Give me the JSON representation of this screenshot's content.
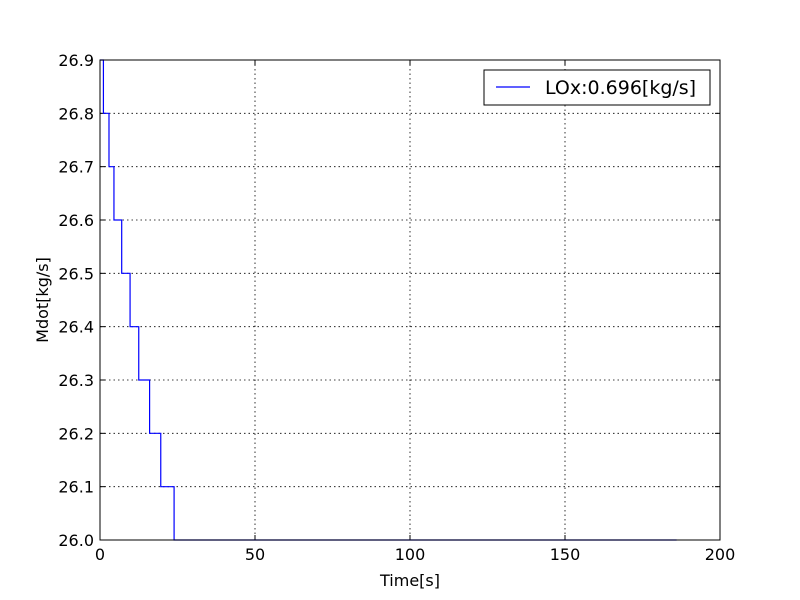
{
  "chart_data": {
    "type": "line",
    "xlabel": "Time[s]",
    "ylabel": "Mdot[kg/s]",
    "xlim": [
      0,
      200
    ],
    "ylim": [
      26.0,
      26.9
    ],
    "x_ticks": [
      "0",
      "50",
      "100",
      "150",
      "200"
    ],
    "y_ticks": [
      "26.0",
      "26.1",
      "26.2",
      "26.3",
      "26.4",
      "26.5",
      "26.6",
      "26.7",
      "26.8",
      "26.9"
    ],
    "grid": true,
    "legend_position": "top-right",
    "step": "post",
    "series": [
      {
        "name": "LOx:0.696[kg/s]",
        "color": "#0000ff",
        "x": [
          0.0,
          1.1,
          2.9,
          4.5,
          7.0,
          9.7,
          12.5,
          16.0,
          19.6,
          23.9,
          186.0
        ],
        "y": [
          26.9,
          26.8,
          26.7,
          26.6,
          26.5,
          26.4,
          26.3,
          26.2,
          26.1,
          26.0,
          26.0
        ]
      }
    ]
  }
}
